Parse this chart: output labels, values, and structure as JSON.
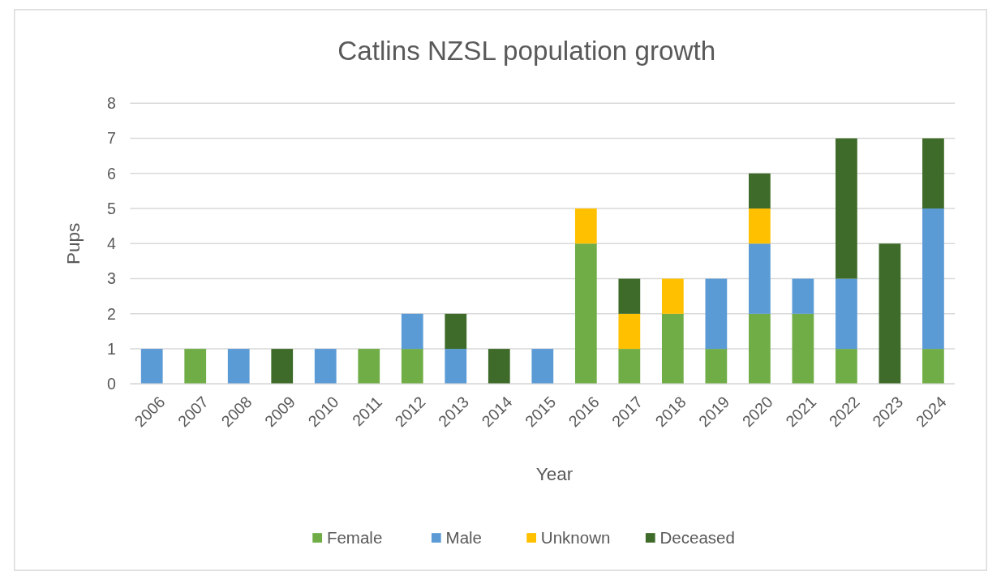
{
  "chart_data": {
    "type": "bar",
    "title": "Catlins NZSL population growth",
    "xlabel": "Year",
    "ylabel": "Pups",
    "categories": [
      "2006",
      "2007",
      "2008",
      "2009",
      "2010",
      "2011",
      "2012",
      "2013",
      "2014",
      "2015",
      "2016",
      "2017",
      "2018",
      "2019",
      "2020",
      "2021",
      "2022",
      "2023",
      "2024"
    ],
    "series": [
      {
        "name": "Female",
        "color": "#70ad47",
        "values": [
          0,
          1,
          0,
          0,
          0,
          1,
          1,
          0,
          0,
          0,
          4,
          1,
          2,
          1,
          2,
          2,
          1,
          0,
          1
        ]
      },
      {
        "name": "Male",
        "color": "#5b9bd5",
        "values": [
          1,
          0,
          1,
          0,
          1,
          0,
          1,
          1,
          0,
          1,
          0,
          0,
          0,
          2,
          2,
          1,
          2,
          0,
          4
        ]
      },
      {
        "name": "Unknown",
        "color": "#ffc000",
        "values": [
          0,
          0,
          0,
          0,
          0,
          0,
          0,
          0,
          0,
          0,
          1,
          1,
          1,
          0,
          1,
          0,
          0,
          0,
          0
        ]
      },
      {
        "name": "Deceased",
        "color": "#3e6b29",
        "values": [
          0,
          0,
          0,
          1,
          0,
          0,
          0,
          1,
          1,
          0,
          0,
          1,
          0,
          0,
          1,
          0,
          4,
          4,
          2
        ]
      }
    ],
    "stacked": true,
    "ylim": [
      0,
      8
    ],
    "yticks": [
      0,
      1,
      2,
      3,
      4,
      5,
      6,
      7,
      8
    ],
    "grid": "y",
    "legend": "bottom"
  }
}
